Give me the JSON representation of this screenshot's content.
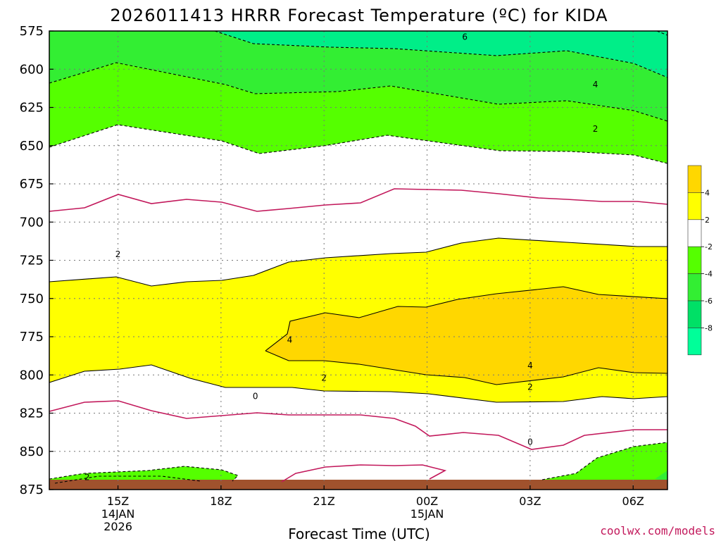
{
  "chart_data": {
    "type": "contour",
    "title": "2026011413 HRRR Forecast Temperature (ºC) for KIDA",
    "xlabel": "Forecast Time (UTC)",
    "ylabel": "",
    "y_ticks": [
      "575",
      "600",
      "625",
      "650",
      "675",
      "700",
      "725",
      "750",
      "775",
      "800",
      "825",
      "850",
      "875"
    ],
    "y_values": [
      575,
      600,
      625,
      650,
      675,
      700,
      725,
      750,
      775,
      800,
      825,
      850,
      875
    ],
    "ylim": [
      875,
      575
    ],
    "x_range_hours": [
      13,
      31
    ],
    "x_ticks": [
      {
        "hour": 15,
        "label": "15Z",
        "sub1": "14JAN",
        "sub2": "2026"
      },
      {
        "hour": 18,
        "label": "18Z",
        "sub1": "",
        "sub2": ""
      },
      {
        "hour": 21,
        "label": "21Z",
        "sub1": "",
        "sub2": ""
      },
      {
        "hour": 24,
        "label": "00Z",
        "sub1": "15JAN",
        "sub2": ""
      },
      {
        "hour": 27,
        "label": "03Z",
        "sub1": "",
        "sub2": ""
      },
      {
        "hour": 30,
        "label": "06Z",
        "sub1": "",
        "sub2": ""
      }
    ],
    "contour_labels": [
      {
        "text": "6",
        "hour": 25.1,
        "p": 579
      },
      {
        "text": "4",
        "hour": 28.9,
        "p": 610
      },
      {
        "text": "2",
        "hour": 28.9,
        "p": 639
      },
      {
        "text": "2",
        "hour": 15.0,
        "p": 721
      },
      {
        "text": "4",
        "hour": 20.0,
        "p": 777
      },
      {
        "text": "4",
        "hour": 27.0,
        "p": 794
      },
      {
        "text": "2",
        "hour": 21.0,
        "p": 802
      },
      {
        "text": "2",
        "hour": 27.0,
        "p": 808
      },
      {
        "text": "0",
        "hour": 19.0,
        "p": 814
      },
      {
        "text": "0",
        "hour": 27.0,
        "p": 844
      },
      {
        "text": "2",
        "hour": 14.1,
        "p": 867
      }
    ],
    "colorbar": {
      "colors": [
        "#ffd700",
        "#ffff00",
        "#ffffff",
        "#55ff00",
        "#33ee33",
        "#00e066",
        "#00ff99"
      ],
      "labels": [
        "4",
        "2",
        "-2",
        "-4",
        "-6",
        "-8"
      ]
    },
    "fill_colors": {
      "warm4": "#ffd700",
      "warm2": "#ffff00",
      "neutral": "#ffffff",
      "cold2": "#55ff00",
      "cold4": "#33ee33",
      "cold6": "#00ee88",
      "ground": "#a0522d",
      "zero_line": "#c2185b"
    }
  },
  "credit": "coolwx.com/models"
}
